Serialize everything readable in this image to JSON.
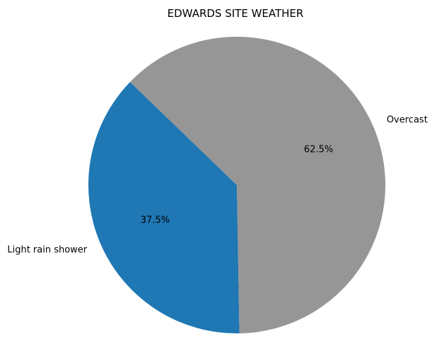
{
  "chart_data": {
    "type": "pie",
    "title": "EDWARDS SITE WEATHER",
    "slices": [
      {
        "label": "Light rain shower",
        "value": 37.5,
        "pct_label": "37.5%",
        "color": "#1f77b4"
      },
      {
        "label": "Overcast",
        "value": 62.5,
        "pct_label": "62.5%",
        "color": "#969696"
      }
    ],
    "start_angle_deg": 136,
    "direction": "counterclockwise",
    "legend": "none"
  }
}
